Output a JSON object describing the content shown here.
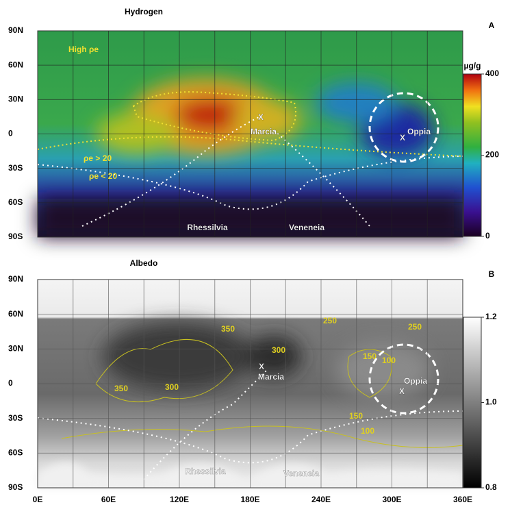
{
  "panels": [
    {
      "title": "Hydrogen",
      "letter": "A",
      "lat_labels": [
        "90N",
        "60N",
        "30N",
        "0",
        "30S",
        "60S",
        "90S"
      ],
      "colorbar": {
        "unit": "µg/g",
        "range": [
          0,
          400
        ],
        "ticks": [
          0,
          200,
          400
        ]
      },
      "annotations": [
        {
          "text": "High ρe"
        },
        {
          "text": "ρe > 20"
        },
        {
          "text": "ρe < 20"
        },
        {
          "text": "X"
        },
        {
          "text": "Marcia"
        },
        {
          "text": "X"
        },
        {
          "text": "Oppia"
        },
        {
          "text": "Rhessilvia"
        },
        {
          "text": "Veneneia"
        }
      ]
    },
    {
      "title": "Albedo",
      "letter": "B",
      "lat_labels": [
        "90N",
        "60N",
        "30N",
        "0",
        "30S",
        "60S",
        "90S"
      ],
      "lon_labels": [
        "0E",
        "60E",
        "120E",
        "180E",
        "240E",
        "300E",
        "360E"
      ],
      "colorbar": {
        "range": [
          0.8,
          1.2
        ],
        "ticks": [
          0.8,
          {
            "value": 1,
            "label": "1.0"
          },
          1.2
        ]
      },
      "annotations": [
        {
          "text": 350
        },
        {
          "text": 300
        },
        {
          "text": 350
        },
        {
          "text": 300
        },
        {
          "text": 250
        },
        {
          "text": 150
        },
        {
          "text": 100
        },
        {
          "text": 250
        },
        {
          "text": 150
        },
        {
          "text": 100
        },
        {
          "text": "X"
        },
        {
          "text": "Marcia"
        },
        {
          "text": "X"
        },
        {
          "text": "Oppia"
        },
        {
          "text": "Rhessilvia"
        },
        {
          "text": "Veneneia"
        }
      ]
    }
  ]
}
